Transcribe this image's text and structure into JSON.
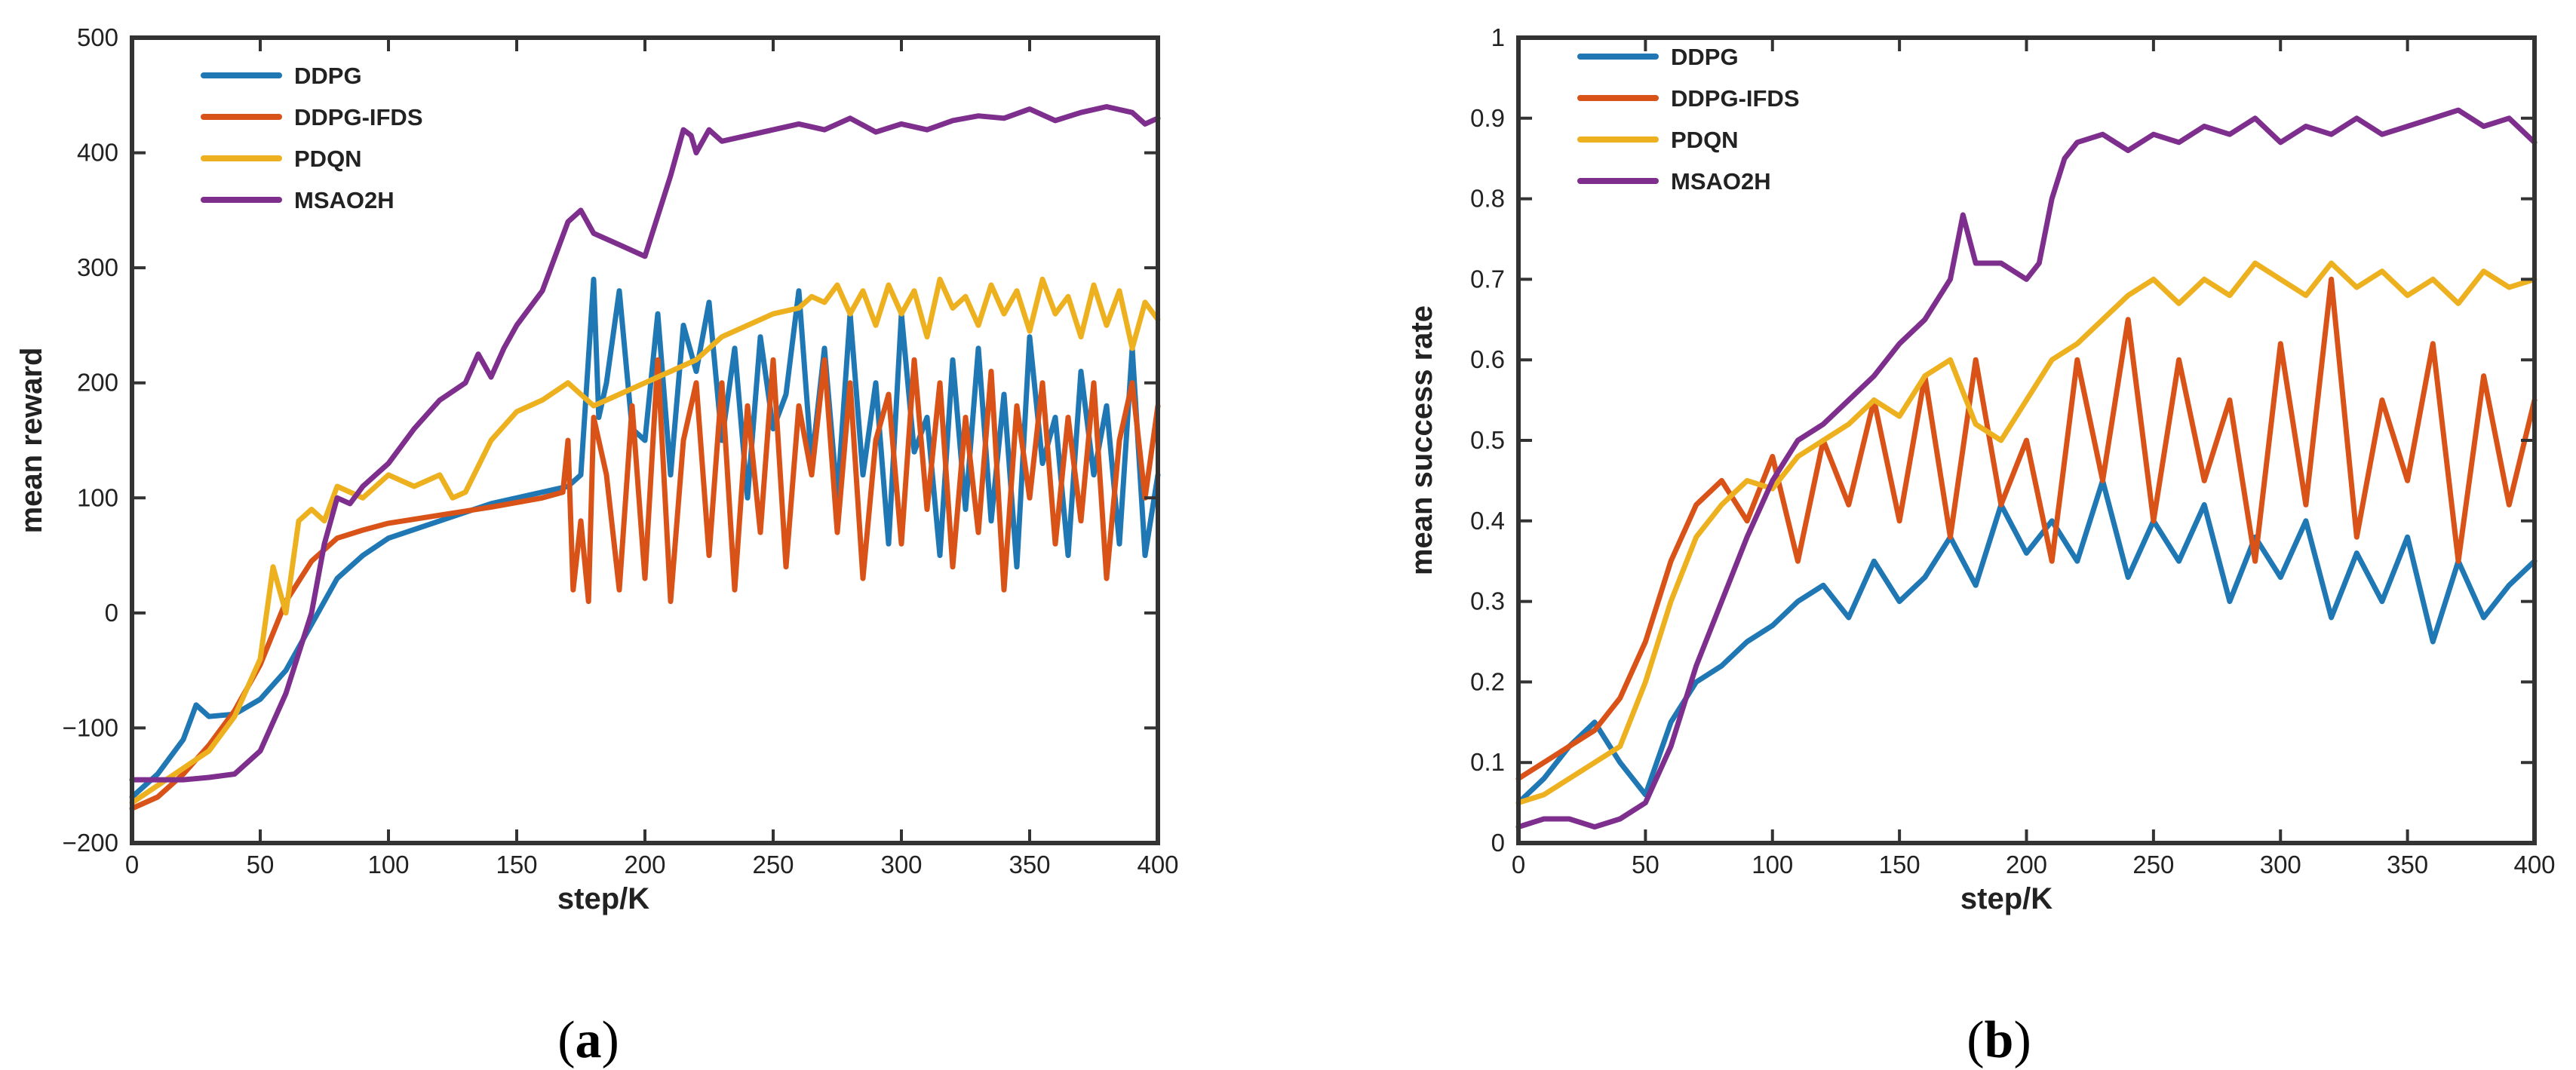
{
  "figure": {
    "panels": [
      {
        "open": "(",
        "letter": "a",
        "close": ")"
      },
      {
        "open": "(",
        "letter": "b",
        "close": ")"
      }
    ]
  },
  "series_styles": [
    {
      "name": "DDPG",
      "color": "#1f77b4"
    },
    {
      "name": "DDPG-IFDS",
      "color": "#d95319"
    },
    {
      "name": "PDQN",
      "color": "#edb120"
    },
    {
      "name": "MSAO2H",
      "color": "#7e2f8e"
    }
  ],
  "chart_data": [
    {
      "type": "line",
      "title": "",
      "xlabel": "step/K",
      "ylabel": "mean reward",
      "xlim": [
        0,
        400
      ],
      "ylim": [
        -200,
        500
      ],
      "xticks": [
        0,
        50,
        100,
        150,
        200,
        250,
        300,
        350,
        400
      ],
      "yticks": [
        -200,
        -100,
        0,
        100,
        200,
        300,
        400,
        500
      ],
      "ytick_labels": [
        "−200",
        "−100",
        "0",
        "100",
        "200",
        "300",
        "400",
        "500"
      ],
      "legend": "top-left",
      "series": [
        {
          "name": "DDPG",
          "x": [
            0,
            10,
            20,
            25,
            30,
            40,
            50,
            60,
            70,
            80,
            90,
            100,
            120,
            140,
            160,
            170,
            175,
            180,
            182,
            185,
            190,
            195,
            200,
            205,
            210,
            215,
            220,
            225,
            230,
            235,
            240,
            245,
            250,
            255,
            260,
            265,
            270,
            275,
            280,
            285,
            290,
            295,
            300,
            305,
            310,
            315,
            320,
            325,
            330,
            335,
            340,
            345,
            350,
            355,
            360,
            365,
            370,
            375,
            380,
            385,
            390,
            395,
            400
          ],
          "y": [
            -160,
            -140,
            -110,
            -80,
            -90,
            -88,
            -75,
            -50,
            -10,
            30,
            50,
            65,
            80,
            95,
            105,
            110,
            120,
            290,
            170,
            200,
            280,
            160,
            150,
            260,
            120,
            250,
            210,
            270,
            150,
            230,
            100,
            240,
            160,
            190,
            280,
            130,
            230,
            100,
            260,
            120,
            200,
            60,
            260,
            140,
            170,
            50,
            220,
            90,
            230,
            80,
            190,
            40,
            240,
            130,
            170,
            50,
            210,
            120,
            180,
            60,
            230,
            50,
            120
          ]
        },
        {
          "name": "DDPG-IFDS",
          "x": [
            0,
            10,
            20,
            30,
            40,
            50,
            60,
            70,
            80,
            90,
            100,
            120,
            140,
            160,
            168,
            170,
            172,
            175,
            178,
            180,
            185,
            190,
            195,
            200,
            205,
            210,
            215,
            220,
            225,
            230,
            235,
            240,
            245,
            250,
            255,
            260,
            265,
            270,
            275,
            280,
            285,
            290,
            295,
            300,
            305,
            310,
            315,
            320,
            325,
            330,
            335,
            340,
            345,
            350,
            355,
            360,
            365,
            370,
            375,
            380,
            385,
            390,
            395,
            400
          ],
          "y": [
            -170,
            -160,
            -140,
            -115,
            -85,
            -45,
            10,
            45,
            65,
            72,
            78,
            85,
            92,
            100,
            105,
            150,
            20,
            80,
            10,
            170,
            120,
            20,
            180,
            30,
            220,
            10,
            150,
            200,
            50,
            200,
            20,
            180,
            70,
            220,
            40,
            180,
            120,
            220,
            70,
            200,
            30,
            150,
            190,
            60,
            220,
            90,
            200,
            40,
            170,
            70,
            210,
            20,
            180,
            100,
            200,
            60,
            170,
            80,
            200,
            30,
            150,
            200,
            100,
            180
          ]
        },
        {
          "name": "PDQN",
          "x": [
            0,
            10,
            20,
            30,
            40,
            50,
            55,
            60,
            65,
            70,
            75,
            80,
            90,
            100,
            110,
            120,
            125,
            130,
            140,
            150,
            160,
            170,
            180,
            190,
            200,
            210,
            220,
            225,
            230,
            240,
            250,
            260,
            265,
            270,
            275,
            280,
            285,
            290,
            295,
            300,
            305,
            310,
            315,
            320,
            325,
            330,
            335,
            340,
            345,
            350,
            355,
            360,
            365,
            370,
            375,
            380,
            385,
            390,
            395,
            400
          ],
          "y": [
            -165,
            -150,
            -135,
            -120,
            -90,
            -40,
            40,
            0,
            80,
            90,
            80,
            110,
            100,
            120,
            110,
            120,
            100,
            105,
            150,
            175,
            185,
            200,
            180,
            190,
            200,
            210,
            220,
            230,
            240,
            250,
            260,
            265,
            275,
            270,
            285,
            260,
            280,
            250,
            285,
            260,
            280,
            240,
            290,
            265,
            275,
            250,
            285,
            260,
            280,
            245,
            290,
            260,
            275,
            240,
            285,
            250,
            280,
            230,
            270,
            255
          ]
        },
        {
          "name": "MSAO2H",
          "x": [
            0,
            10,
            20,
            30,
            40,
            50,
            60,
            70,
            75,
            80,
            85,
            90,
            100,
            110,
            120,
            130,
            135,
            140,
            145,
            150,
            160,
            170,
            175,
            180,
            190,
            200,
            210,
            215,
            218,
            220,
            225,
            230,
            240,
            250,
            260,
            270,
            280,
            290,
            300,
            310,
            320,
            330,
            340,
            350,
            360,
            370,
            380,
            390,
            395,
            400
          ],
          "y": [
            -145,
            -145,
            -145,
            -143,
            -140,
            -120,
            -70,
            0,
            60,
            100,
            95,
            110,
            130,
            160,
            185,
            200,
            225,
            205,
            230,
            250,
            280,
            340,
            350,
            330,
            320,
            310,
            380,
            420,
            415,
            400,
            420,
            410,
            415,
            420,
            425,
            420,
            430,
            418,
            425,
            420,
            428,
            432,
            430,
            438,
            428,
            435,
            440,
            435,
            425,
            430
          ]
        }
      ]
    },
    {
      "type": "line",
      "title": "",
      "xlabel": "step/K",
      "ylabel": "mean success rate",
      "xlim": [
        0,
        400
      ],
      "ylim": [
        0,
        1
      ],
      "xticks": [
        0,
        50,
        100,
        150,
        200,
        250,
        300,
        350,
        400
      ],
      "yticks": [
        0,
        0.1,
        0.2,
        0.3,
        0.4,
        0.5,
        0.6,
        0.7,
        0.8,
        0.9,
        1
      ],
      "ytick_labels": [
        "0",
        "0.1",
        "0.2",
        "0.3",
        "0.4",
        "0.5",
        "0.6",
        "0.7",
        "0.8",
        "0.9",
        "1"
      ],
      "legend": "top-left",
      "series": [
        {
          "name": "DDPG",
          "x": [
            0,
            10,
            20,
            30,
            40,
            50,
            60,
            70,
            80,
            90,
            100,
            110,
            120,
            130,
            140,
            150,
            160,
            170,
            180,
            190,
            200,
            210,
            220,
            230,
            240,
            250,
            260,
            270,
            280,
            290,
            300,
            310,
            320,
            330,
            340,
            350,
            360,
            370,
            380,
            390,
            400
          ],
          "y": [
            0.05,
            0.08,
            0.12,
            0.15,
            0.1,
            0.06,
            0.15,
            0.2,
            0.22,
            0.25,
            0.27,
            0.3,
            0.32,
            0.28,
            0.35,
            0.3,
            0.33,
            0.38,
            0.32,
            0.42,
            0.36,
            0.4,
            0.35,
            0.45,
            0.33,
            0.4,
            0.35,
            0.42,
            0.3,
            0.38,
            0.33,
            0.4,
            0.28,
            0.36,
            0.3,
            0.38,
            0.25,
            0.35,
            0.28,
            0.32,
            0.35
          ]
        },
        {
          "name": "DDPG-IFDS",
          "x": [
            0,
            10,
            20,
            30,
            40,
            50,
            60,
            70,
            80,
            90,
            100,
            110,
            120,
            130,
            140,
            150,
            160,
            170,
            180,
            190,
            200,
            210,
            220,
            230,
            240,
            250,
            260,
            270,
            280,
            290,
            300,
            310,
            320,
            330,
            340,
            350,
            360,
            370,
            380,
            390,
            400
          ],
          "y": [
            0.08,
            0.1,
            0.12,
            0.14,
            0.18,
            0.25,
            0.35,
            0.42,
            0.45,
            0.4,
            0.48,
            0.35,
            0.5,
            0.42,
            0.55,
            0.4,
            0.58,
            0.38,
            0.6,
            0.42,
            0.5,
            0.35,
            0.6,
            0.45,
            0.65,
            0.4,
            0.6,
            0.45,
            0.55,
            0.35,
            0.62,
            0.42,
            0.7,
            0.38,
            0.55,
            0.45,
            0.62,
            0.35,
            0.58,
            0.42,
            0.55
          ]
        },
        {
          "name": "PDQN",
          "x": [
            0,
            10,
            20,
            30,
            40,
            50,
            60,
            70,
            80,
            90,
            100,
            110,
            120,
            130,
            140,
            150,
            160,
            170,
            180,
            190,
            200,
            210,
            220,
            230,
            240,
            250,
            260,
            270,
            280,
            290,
            300,
            310,
            320,
            330,
            340,
            350,
            360,
            370,
            380,
            390,
            400
          ],
          "y": [
            0.05,
            0.06,
            0.08,
            0.1,
            0.12,
            0.2,
            0.3,
            0.38,
            0.42,
            0.45,
            0.44,
            0.48,
            0.5,
            0.52,
            0.55,
            0.53,
            0.58,
            0.6,
            0.52,
            0.5,
            0.55,
            0.6,
            0.62,
            0.65,
            0.68,
            0.7,
            0.67,
            0.7,
            0.68,
            0.72,
            0.7,
            0.68,
            0.72,
            0.69,
            0.71,
            0.68,
            0.7,
            0.67,
            0.71,
            0.69,
            0.7
          ]
        },
        {
          "name": "MSAO2H",
          "x": [
            0,
            10,
            20,
            30,
            40,
            50,
            60,
            70,
            80,
            90,
            100,
            110,
            120,
            130,
            140,
            150,
            160,
            170,
            175,
            180,
            190,
            200,
            205,
            210,
            215,
            220,
            230,
            240,
            250,
            260,
            270,
            280,
            290,
            300,
            310,
            320,
            330,
            340,
            350,
            360,
            370,
            380,
            390,
            400
          ],
          "y": [
            0.02,
            0.03,
            0.03,
            0.02,
            0.03,
            0.05,
            0.12,
            0.22,
            0.3,
            0.38,
            0.45,
            0.5,
            0.52,
            0.55,
            0.58,
            0.62,
            0.65,
            0.7,
            0.78,
            0.72,
            0.72,
            0.7,
            0.72,
            0.8,
            0.85,
            0.87,
            0.88,
            0.86,
            0.88,
            0.87,
            0.89,
            0.88,
            0.9,
            0.87,
            0.89,
            0.88,
            0.9,
            0.88,
            0.89,
            0.9,
            0.91,
            0.89,
            0.9,
            0.87
          ]
        }
      ]
    }
  ]
}
